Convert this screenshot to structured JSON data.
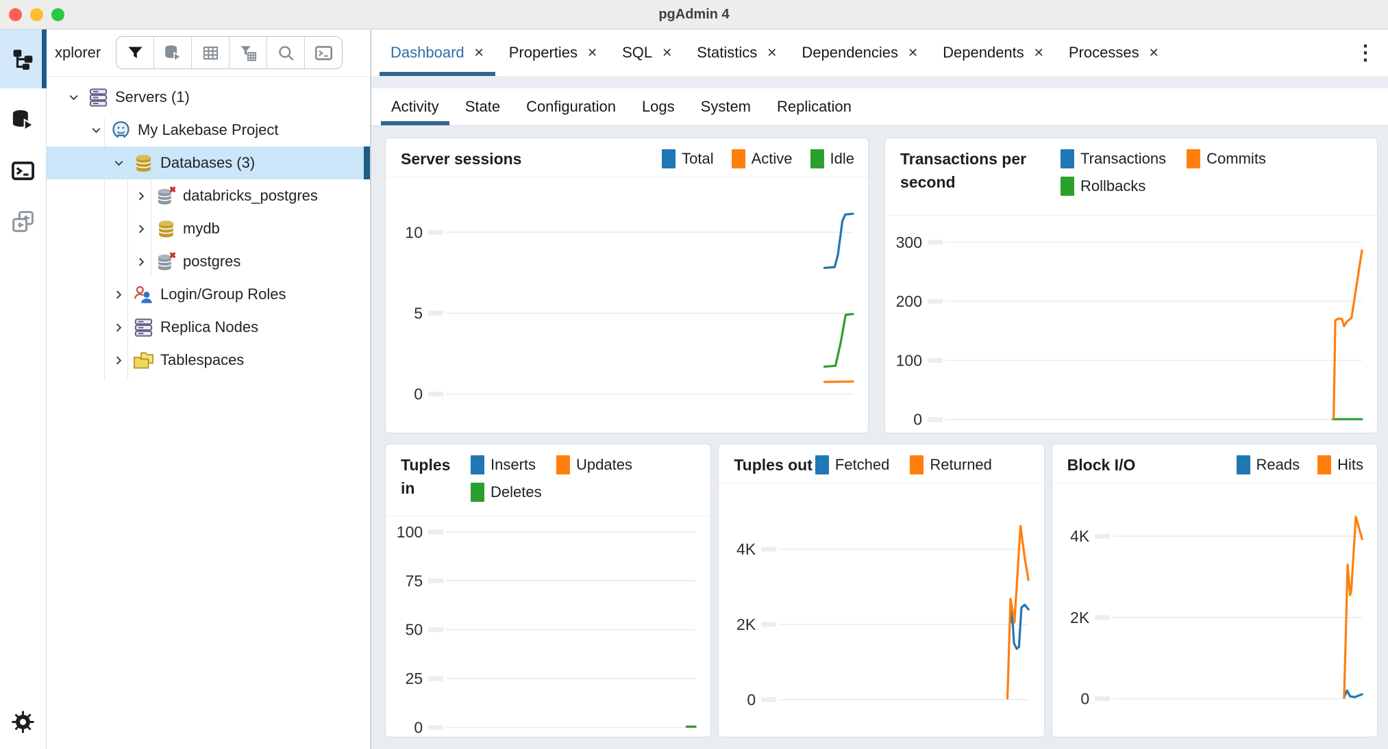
{
  "window": {
    "title": "pgAdmin 4"
  },
  "activity_bar": {
    "items": [
      {
        "icon": "object-explorer",
        "selected": true
      },
      {
        "icon": "query-tool"
      },
      {
        "icon": "psql-tool"
      },
      {
        "icon": "schema-diff",
        "muted": true
      },
      {
        "icon": "settings-gear",
        "bottom": true
      }
    ]
  },
  "explorer": {
    "label": "xplorer",
    "toolbar": [
      {
        "icon": "filter",
        "active": true
      },
      {
        "icon": "query-tool"
      },
      {
        "icon": "grid"
      },
      {
        "icon": "filter-grid"
      },
      {
        "icon": "search"
      },
      {
        "icon": "console"
      }
    ],
    "tree": [
      {
        "label": "Servers (1)",
        "icon": "server-stack",
        "level": 0,
        "expanded": true
      },
      {
        "label": "My Lakebase Project",
        "icon": "pg-elephant",
        "level": 1,
        "expanded": true
      },
      {
        "label": "Databases (3)",
        "icon": "db-gold",
        "level": 2,
        "expanded": true,
        "selected": true
      },
      {
        "label": "databricks_postgres",
        "icon": "db-gray-x",
        "level": 3,
        "expanded": false
      },
      {
        "label": "mydb",
        "icon": "db-gold",
        "level": 3,
        "expanded": false
      },
      {
        "label": "postgres",
        "icon": "db-gray-x",
        "level": 3,
        "expanded": false
      },
      {
        "label": "Login/Group Roles",
        "icon": "roles",
        "level": 2,
        "expanded": false
      },
      {
        "label": "Replica Nodes",
        "icon": "server-stack",
        "level": 2,
        "expanded": false
      },
      {
        "label": "Tablespaces",
        "icon": "folders",
        "level": 2,
        "expanded": false
      }
    ]
  },
  "tabs": {
    "close_glyph": "✕",
    "overflow_glyph": "⋮",
    "items": [
      {
        "label": "Dashboard",
        "active": true
      },
      {
        "label": "Properties"
      },
      {
        "label": "SQL"
      },
      {
        "label": "Statistics"
      },
      {
        "label": "Dependencies"
      },
      {
        "label": "Dependents"
      },
      {
        "label": "Processes"
      }
    ]
  },
  "subtabs": {
    "items": [
      {
        "label": "Activity",
        "active": true
      },
      {
        "label": "State"
      },
      {
        "label": "Configuration"
      },
      {
        "label": "Logs"
      },
      {
        "label": "System"
      },
      {
        "label": "Replication"
      }
    ]
  },
  "colors": {
    "accent": "#326690",
    "blue": "#1f77b4",
    "orange": "#ff7f0e",
    "green": "#2ca02c"
  },
  "chart_data": [
    {
      "id": "server-sessions",
      "type": "line",
      "title": "Server sessions",
      "legend": [
        {
          "label": "Total",
          "color": "#1f77b4"
        },
        {
          "label": "Active",
          "color": "#ff7f0e"
        },
        {
          "label": "Idle",
          "color": "#2ca02c"
        }
      ],
      "yticks": [
        {
          "value": 10,
          "label": "10"
        },
        {
          "value": 5,
          "label": "5"
        },
        {
          "value": 0,
          "label": "0"
        }
      ],
      "ylim": [
        -2.3,
        13.4
      ],
      "series": [
        {
          "name": "Total",
          "color": "#1f77b4",
          "points": [
            [
              0.93,
              7.8
            ],
            [
              0.955,
              7.85
            ],
            [
              0.963,
              8.6
            ],
            [
              0.974,
              10.7
            ],
            [
              0.981,
              11.1
            ],
            [
              1.0,
              11.15
            ]
          ]
        },
        {
          "name": "Idle",
          "color": "#2ca02c",
          "points": [
            [
              0.93,
              1.7
            ],
            [
              0.957,
              1.75
            ],
            [
              0.97,
              3.2
            ],
            [
              0.982,
              4.9
            ],
            [
              1.0,
              4.95
            ]
          ]
        },
        {
          "name": "Active",
          "color": "#ff7f0e",
          "points": [
            [
              0.93,
              0.75
            ],
            [
              1.0,
              0.78
            ]
          ]
        }
      ]
    },
    {
      "id": "transactions-per-second",
      "type": "line",
      "title": "Transactions per second",
      "legend": [
        {
          "label": "Transactions",
          "color": "#1f77b4"
        },
        {
          "label": "Commits",
          "color": "#ff7f0e"
        },
        {
          "label": "Rollbacks",
          "color": "#2ca02c"
        }
      ],
      "yticks": [
        {
          "value": 300,
          "label": "300"
        },
        {
          "value": 200,
          "label": "200"
        },
        {
          "value": 100,
          "label": "100"
        },
        {
          "value": 0,
          "label": "0"
        }
      ],
      "ylim": [
        -20,
        345
      ],
      "series": [
        {
          "name": "Transactions",
          "color": "#1f77b4",
          "points": []
        },
        {
          "name": "Rollbacks",
          "color": "#2ca02c",
          "points": [
            [
              0.93,
              0.5
            ],
            [
              1.0,
              0.5
            ]
          ]
        },
        {
          "name": "Commits",
          "color": "#ff7f0e",
          "points": [
            [
              0.932,
              1
            ],
            [
              0.936,
              168
            ],
            [
              0.944,
              171
            ],
            [
              0.952,
              170
            ],
            [
              0.957,
              158
            ],
            [
              0.964,
              166
            ],
            [
              0.975,
              172
            ],
            [
              1.0,
              286
            ]
          ]
        }
      ]
    },
    {
      "id": "tuples-in",
      "type": "line",
      "title": "Tuples in",
      "legend": [
        {
          "label": "Inserts",
          "color": "#1f77b4"
        },
        {
          "label": "Updates",
          "color": "#ff7f0e"
        },
        {
          "label": "Deletes",
          "color": "#2ca02c"
        }
      ],
      "yticks": [
        {
          "value": 100,
          "label": "100"
        },
        {
          "value": 75,
          "label": "75"
        },
        {
          "value": 50,
          "label": "50"
        },
        {
          "value": 25,
          "label": "25"
        },
        {
          "value": 0,
          "label": "0"
        }
      ],
      "ylim": [
        -4,
        108
      ],
      "series": [
        {
          "name": "Inserts",
          "color": "#1f77b4",
          "points": []
        },
        {
          "name": "Updates",
          "color": "#ff7f0e",
          "points": []
        },
        {
          "name": "Deletes",
          "color": "#2ca02c",
          "points": [
            [
              0.965,
              0.4
            ],
            [
              1.0,
              0.4
            ]
          ]
        }
      ]
    },
    {
      "id": "tuples-out",
      "type": "line",
      "title": "Tuples out",
      "legend": [
        {
          "label": "Fetched",
          "color": "#1f77b4"
        },
        {
          "label": "Returned",
          "color": "#ff7f0e"
        }
      ],
      "yticks": [
        {
          "value": 4000,
          "label": "4K"
        },
        {
          "value": 2000,
          "label": "2K"
        },
        {
          "value": 0,
          "label": "0"
        }
      ],
      "ylim": [
        -950,
        5750
      ],
      "series": [
        {
          "name": "Fetched",
          "color": "#1f77b4",
          "points": [
            [
              0.928,
              2050
            ],
            [
              0.934,
              2350
            ],
            [
              0.942,
              1500
            ],
            [
              0.953,
              1350
            ],
            [
              0.962,
              1400
            ],
            [
              0.972,
              2450
            ],
            [
              0.985,
              2520
            ],
            [
              1.0,
              2400
            ]
          ]
        },
        {
          "name": "Returned",
          "color": "#ff7f0e",
          "points": [
            [
              0.916,
              30
            ],
            [
              0.928,
              2680
            ],
            [
              0.937,
              2350
            ],
            [
              0.944,
              2050
            ],
            [
              0.968,
              4620
            ],
            [
              0.985,
              3780
            ],
            [
              1.0,
              3180
            ]
          ]
        }
      ]
    },
    {
      "id": "block-io",
      "type": "line",
      "title": "Block I/O",
      "legend": [
        {
          "label": "Reads",
          "color": "#1f77b4"
        },
        {
          "label": "Hits",
          "color": "#ff7f0e"
        }
      ],
      "yticks": [
        {
          "value": 4000,
          "label": "4K"
        },
        {
          "value": 2000,
          "label": "2K"
        },
        {
          "value": 0,
          "label": "0"
        }
      ],
      "ylim": [
        -900,
        5300
      ],
      "series": [
        {
          "name": "Reads",
          "color": "#1f77b4",
          "points": [
            [
              0.928,
              40
            ],
            [
              0.94,
              200
            ],
            [
              0.952,
              60
            ],
            [
              0.97,
              40
            ],
            [
              1.0,
              110
            ]
          ]
        },
        {
          "name": "Hits",
          "color": "#ff7f0e",
          "points": [
            [
              0.928,
              20
            ],
            [
              0.942,
              3300
            ],
            [
              0.952,
              2550
            ],
            [
              0.957,
              2680
            ],
            [
              0.975,
              4480
            ],
            [
              0.99,
              4150
            ],
            [
              1.0,
              3930
            ]
          ]
        }
      ]
    }
  ]
}
